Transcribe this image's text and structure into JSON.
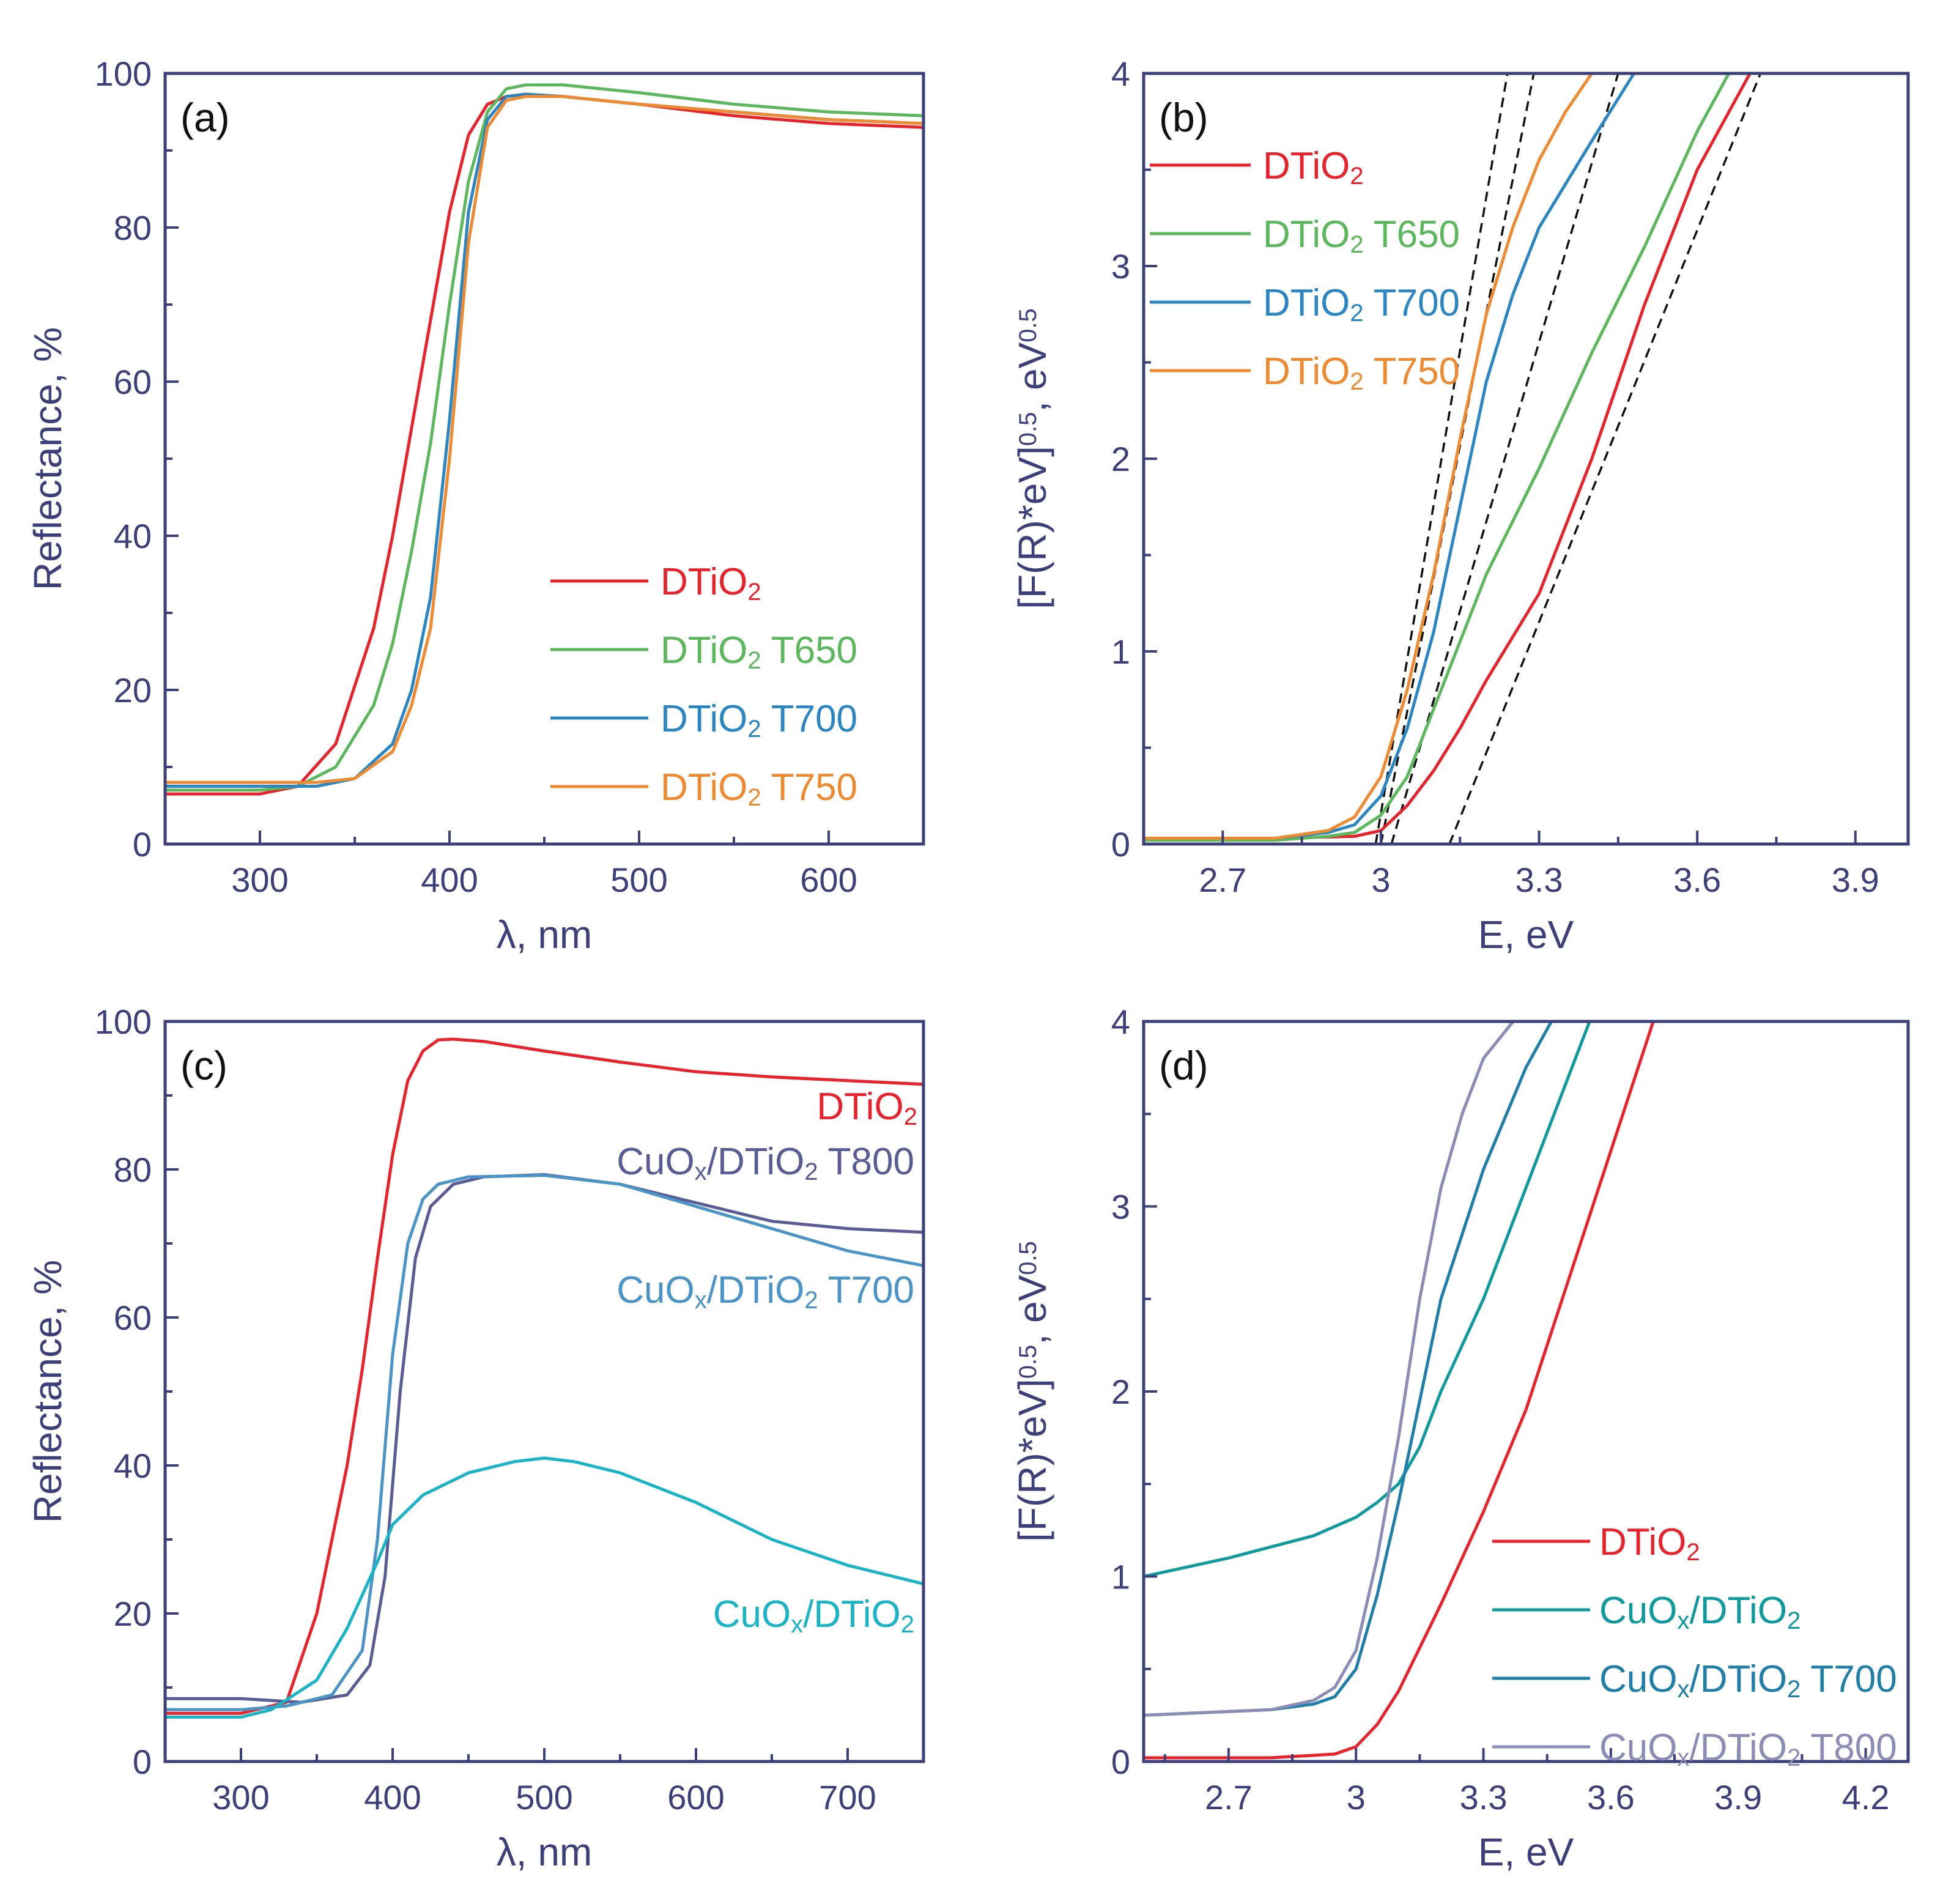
{
  "colors": {
    "axis": "#3d3f7a",
    "red": "#e8232b",
    "green": "#5cb85c",
    "blue": "#2b86c4",
    "orange": "#f08a30",
    "purple": "#5a5c96",
    "lightblue": "#4a94c8",
    "cyan": "#19b4c6",
    "teal": "#0f9a9e",
    "steel": "#1f7fa8",
    "lavender": "#8c8db6"
  },
  "chart_data": [
    {
      "id": "a",
      "panel_label": "(a)",
      "type": "line",
      "xlabel": "λ, nm",
      "ylabel": "Reflectance, %",
      "xlim": [
        250,
        650
      ],
      "ylim": [
        0,
        100
      ],
      "xticks": [
        300,
        400,
        500,
        600
      ],
      "yticks": [
        0,
        20,
        40,
        60,
        80,
        100
      ],
      "legend_position": "bottom-right",
      "series": [
        {
          "name": "DTiO2",
          "label_main": "DTiO",
          "label_sub": "2",
          "label_suffix": "",
          "color": "red",
          "x": [
            250,
            300,
            320,
            340,
            360,
            370,
            380,
            390,
            400,
            410,
            420,
            430,
            440,
            460,
            500,
            550,
            600,
            650
          ],
          "y": [
            6.5,
            6.5,
            7.5,
            13,
            28,
            40,
            54,
            68,
            82,
            92,
            96,
            97,
            97.3,
            97,
            96,
            94.5,
            93.5,
            93
          ]
        },
        {
          "name": "DTiO2 T650",
          "label_main": "DTiO",
          "label_sub": "2",
          "label_suffix": " T650",
          "color": "green",
          "x": [
            250,
            300,
            320,
            340,
            360,
            370,
            380,
            390,
            400,
            410,
            420,
            430,
            440,
            460,
            500,
            550,
            600,
            650
          ],
          "y": [
            7,
            7,
            7.5,
            10,
            18,
            26,
            38,
            52,
            70,
            86,
            95,
            98,
            98.5,
            98.5,
            97.5,
            96,
            95,
            94.5
          ]
        },
        {
          "name": "DTiO2 T700",
          "label_main": "DTiO",
          "label_sub": "2",
          "label_suffix": " T700",
          "color": "blue",
          "x": [
            250,
            300,
            330,
            350,
            370,
            380,
            390,
            400,
            410,
            420,
            430,
            440,
            460,
            500,
            550,
            600,
            650
          ],
          "y": [
            7.5,
            7.5,
            7.5,
            8.5,
            13,
            20,
            32,
            55,
            82,
            94,
            97,
            97.3,
            97,
            96,
            95,
            94,
            93.5
          ]
        },
        {
          "name": "DTiO2 T750",
          "label_main": "DTiO",
          "label_sub": "2",
          "label_suffix": " T750",
          "color": "orange",
          "x": [
            250,
            300,
            330,
            350,
            370,
            380,
            390,
            400,
            410,
            420,
            430,
            440,
            460,
            500,
            550,
            600,
            650
          ],
          "y": [
            8,
            8,
            8,
            8.5,
            12,
            18,
            28,
            50,
            78,
            93,
            96.5,
            97,
            97,
            96,
            95,
            94,
            93.5
          ]
        }
      ]
    },
    {
      "id": "b",
      "panel_label": "(b)",
      "type": "line",
      "xlabel": "E, eV",
      "ylabel_base": "[F(R)*eV]",
      "ylabel_sup1": "0.5",
      "ylabel_unit": ", eV",
      "ylabel_sup2": "0.5",
      "xlim": [
        2.55,
        4.0
      ],
      "ylim": [
        0,
        4
      ],
      "xticks": [
        2.7,
        3.0,
        3.3,
        3.6,
        3.9
      ],
      "yticks": [
        0,
        1,
        2,
        3,
        4
      ],
      "legend_position": "top-left",
      "series": [
        {
          "name": "DTiO2",
          "label_main": "DTiO",
          "label_sub": "2",
          "label_suffix": "",
          "color": "red",
          "x": [
            2.55,
            2.8,
            2.95,
            3.0,
            3.05,
            3.1,
            3.15,
            3.2,
            3.3,
            3.4,
            3.5,
            3.6,
            3.7
          ],
          "y": [
            0.03,
            0.03,
            0.04,
            0.07,
            0.2,
            0.38,
            0.6,
            0.85,
            1.3,
            2.0,
            2.8,
            3.5,
            4.0
          ]
        },
        {
          "name": "DTiO2 T650",
          "label_main": "DTiO",
          "label_sub": "2",
          "label_suffix": " T650",
          "color": "green",
          "x": [
            2.55,
            2.8,
            2.9,
            2.95,
            3.0,
            3.05,
            3.1,
            3.2,
            3.3,
            3.4,
            3.5,
            3.6,
            3.66
          ],
          "y": [
            0.02,
            0.02,
            0.04,
            0.06,
            0.15,
            0.35,
            0.7,
            1.4,
            1.95,
            2.55,
            3.1,
            3.7,
            4.0
          ]
        },
        {
          "name": "DTiO2 T700",
          "label_main": "DTiO",
          "label_sub": "2",
          "label_suffix": " T700",
          "color": "blue",
          "x": [
            2.55,
            2.8,
            2.9,
            2.95,
            3.0,
            3.05,
            3.1,
            3.15,
            3.2,
            3.25,
            3.3,
            3.4,
            3.48
          ],
          "y": [
            0.03,
            0.03,
            0.06,
            0.1,
            0.25,
            0.6,
            1.1,
            1.75,
            2.4,
            2.85,
            3.2,
            3.65,
            4.0
          ]
        },
        {
          "name": "DTiO2 T750",
          "label_main": "DTiO",
          "label_sub": "2",
          "label_suffix": " T750",
          "color": "orange",
          "x": [
            2.55,
            2.8,
            2.9,
            2.95,
            3.0,
            3.05,
            3.1,
            3.15,
            3.2,
            3.25,
            3.3,
            3.35,
            3.4
          ],
          "y": [
            0.03,
            0.03,
            0.07,
            0.14,
            0.35,
            0.8,
            1.4,
            2.1,
            2.75,
            3.2,
            3.55,
            3.8,
            4.0
          ]
        }
      ],
      "tangent_lines": [
        {
          "x": [
            2.99,
            3.24
          ],
          "y": [
            0.0,
            4.0
          ]
        },
        {
          "x": [
            3.0,
            3.29
          ],
          "y": [
            0.0,
            4.0
          ]
        },
        {
          "x": [
            3.02,
            3.45
          ],
          "y": [
            0.0,
            4.0
          ]
        },
        {
          "x": [
            3.13,
            3.72
          ],
          "y": [
            0.0,
            4.0
          ]
        }
      ]
    },
    {
      "id": "c",
      "panel_label": "(c)",
      "type": "line",
      "xlabel": "λ, nm",
      "ylabel": "Reflectance, %",
      "xlim": [
        250,
        750
      ],
      "ylim": [
        0,
        100
      ],
      "xticks": [
        300,
        400,
        500,
        600,
        700
      ],
      "yticks": [
        0,
        20,
        40,
        60,
        80,
        100
      ],
      "series": [
        {
          "name": "DTiO2",
          "color": "red",
          "x": [
            250,
            300,
            330,
            350,
            370,
            380,
            390,
            400,
            410,
            420,
            430,
            440,
            460,
            500,
            550,
            600,
            650,
            700,
            750
          ],
          "y": [
            6.5,
            6.5,
            8,
            20,
            40,
            53,
            68,
            82,
            92,
            96,
            97.5,
            97.6,
            97.3,
            96,
            94.5,
            93.2,
            92.5,
            92,
            91.5
          ]
        },
        {
          "name": "CuOx/DTiO2 T800",
          "color": "purple",
          "x": [
            250,
            300,
            340,
            370,
            385,
            395,
            405,
            415,
            425,
            440,
            460,
            500,
            550,
            600,
            650,
            700,
            750
          ],
          "y": [
            8.5,
            8.5,
            8,
            9,
            13,
            25,
            50,
            68,
            75,
            78,
            79,
            79.3,
            78,
            75.5,
            73,
            72,
            71.5
          ]
        },
        {
          "name": "CuOx/DTiO2 T700",
          "color": "lightblue",
          "x": [
            250,
            300,
            330,
            360,
            380,
            390,
            400,
            410,
            420,
            430,
            450,
            500,
            550,
            600,
            650,
            700,
            750
          ],
          "y": [
            7,
            7,
            7.5,
            9,
            15,
            30,
            55,
            70,
            76,
            78,
            79,
            79.2,
            78,
            75,
            72,
            69,
            67
          ]
        },
        {
          "name": "CuOx/DTiO2",
          "color": "cyan",
          "x": [
            250,
            300,
            320,
            350,
            370,
            390,
            400,
            420,
            450,
            480,
            500,
            520,
            550,
            600,
            650,
            700,
            750
          ],
          "y": [
            6,
            6,
            7,
            11,
            18,
            27,
            32,
            36,
            39,
            40.5,
            41,
            40.5,
            39,
            35,
            30,
            26.5,
            24
          ]
        }
      ],
      "labels": [
        {
          "series": "DTiO2",
          "main": "DTiO",
          "sub": "2",
          "suffix": "",
          "color": "red"
        },
        {
          "series": "CuOx/DTiO2 T800",
          "main": "CuO",
          "sub": "x",
          "mid": "/DTiO",
          "sub2": "2",
          "suffix": " T800",
          "color": "purple"
        },
        {
          "series": "CuOx/DTiO2 T700",
          "main": "CuO",
          "sub": "x",
          "mid": "/DTiO",
          "sub2": "2",
          "suffix": " T700",
          "color": "lightblue"
        },
        {
          "series": "CuOx/DTiO2",
          "main": "CuO",
          "sub": "x",
          "mid": "/DTiO",
          "sub2": "2",
          "suffix": "",
          "color": "cyan"
        }
      ]
    },
    {
      "id": "d",
      "panel_label": "(d)",
      "type": "line",
      "xlabel": "E, eV",
      "ylabel_base": "[F(R)*eV]",
      "ylabel_sup1": "0.5",
      "ylabel_unit": ", eV",
      "ylabel_sup2": "0.5",
      "xlim": [
        2.5,
        4.3
      ],
      "ylim": [
        0,
        4
      ],
      "xticks": [
        2.7,
        3.0,
        3.3,
        3.6,
        3.9,
        4.2
      ],
      "yticks": [
        0,
        1,
        2,
        3,
        4
      ],
      "legend_position": "bottom-right",
      "series": [
        {
          "name": "DTiO2",
          "label_main": "DTiO",
          "label_sub": "2",
          "label_mid": "",
          "label_sub2": "",
          "label_suffix": "",
          "color": "red",
          "x": [
            2.5,
            2.8,
            2.95,
            3.0,
            3.05,
            3.1,
            3.2,
            3.3,
            3.4,
            3.5,
            3.6,
            3.7
          ],
          "y": [
            0.02,
            0.02,
            0.04,
            0.08,
            0.2,
            0.38,
            0.85,
            1.35,
            1.9,
            2.6,
            3.3,
            4.0
          ]
        },
        {
          "name": "CuOx/DTiO2",
          "label_main": "CuO",
          "label_sub": "x",
          "label_mid": "/DTiO",
          "label_sub2": "2",
          "label_suffix": "",
          "color": "teal",
          "x": [
            2.5,
            2.7,
            2.9,
            3.0,
            3.05,
            3.1,
            3.15,
            3.2,
            3.3,
            3.4,
            3.5,
            3.55
          ],
          "y": [
            1.0,
            1.1,
            1.22,
            1.32,
            1.4,
            1.5,
            1.7,
            2.0,
            2.5,
            3.1,
            3.7,
            4.0
          ]
        },
        {
          "name": "CuOx/DTiO2 T700",
          "label_main": "CuO",
          "label_sub": "x",
          "label_mid": "/DTiO",
          "label_sub2": "2",
          "label_suffix": " T700",
          "color": "steel",
          "x": [
            2.5,
            2.8,
            2.9,
            2.95,
            3.0,
            3.05,
            3.1,
            3.15,
            3.2,
            3.3,
            3.4,
            3.46
          ],
          "y": [
            0.25,
            0.28,
            0.31,
            0.35,
            0.5,
            0.9,
            1.4,
            1.95,
            2.5,
            3.2,
            3.75,
            4.0
          ]
        },
        {
          "name": "CuOx/DTiO2 T800",
          "label_main": "CuO",
          "label_sub": "x",
          "label_mid": "/DTiO",
          "label_sub2": "2",
          "label_suffix": " T800",
          "color": "lavender",
          "x": [
            2.5,
            2.8,
            2.9,
            2.95,
            3.0,
            3.05,
            3.1,
            3.15,
            3.2,
            3.25,
            3.3,
            3.37
          ],
          "y": [
            0.25,
            0.28,
            0.33,
            0.4,
            0.6,
            1.1,
            1.75,
            2.5,
            3.1,
            3.5,
            3.8,
            4.0
          ]
        }
      ]
    }
  ]
}
